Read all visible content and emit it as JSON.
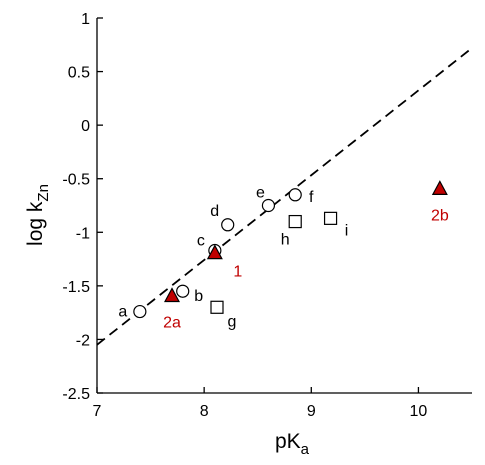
{
  "chart_data": {
    "type": "scatter",
    "xlabel": "pK",
    "xlabel_sub": "a",
    "ylabel": "log k",
    "ylabel_sub": "Zn",
    "xlim": [
      7,
      10.5
    ],
    "ylim": [
      -2.5,
      1
    ],
    "xticks": [
      7,
      8,
      9,
      10
    ],
    "yticks": [
      1,
      0.5,
      0,
      -0.5,
      -1,
      -1.5,
      -2,
      -2.5
    ],
    "xtick_labels": [
      "7",
      "8",
      "9",
      "10"
    ],
    "ytick_labels": [
      "1",
      "0.5",
      "0",
      "-0.5",
      "-1",
      "-1.5",
      "-2",
      "-2.5"
    ],
    "grid": false,
    "fit_line": {
      "style": "dashed",
      "x": [
        7,
        10.5
      ],
      "y": [
        -2.05,
        0.72
      ]
    },
    "series": [
      {
        "marker": "circle",
        "color": "#000000",
        "points": [
          {
            "label": "a",
            "x": 7.4,
            "y": -1.74
          },
          {
            "label": "b",
            "x": 7.8,
            "y": -1.55
          },
          {
            "label": "c",
            "x": 8.1,
            "y": -1.17
          },
          {
            "label": "d",
            "x": 8.22,
            "y": -0.93
          },
          {
            "label": "e",
            "x": 8.6,
            "y": -0.75
          },
          {
            "label": "f",
            "x": 8.85,
            "y": -0.65
          }
        ]
      },
      {
        "marker": "square",
        "color": "#000000",
        "points": [
          {
            "label": "g",
            "x": 8.12,
            "y": -1.7
          },
          {
            "label": "h",
            "x": 8.85,
            "y": -0.9
          },
          {
            "label": "i",
            "x": 9.18,
            "y": -0.87
          }
        ]
      },
      {
        "marker": "triangle",
        "color": "#c00000",
        "points": [
          {
            "label": "2a",
            "x": 7.7,
            "y": -1.6
          },
          {
            "label": "1",
            "x": 8.1,
            "y": -1.2
          },
          {
            "label": "2b",
            "x": 10.2,
            "y": -0.6
          }
        ]
      }
    ]
  }
}
